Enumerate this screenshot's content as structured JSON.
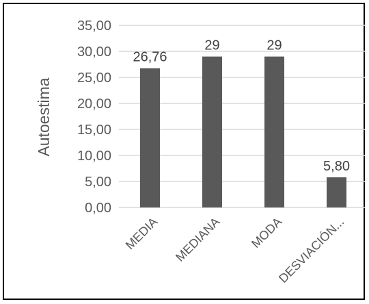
{
  "chart_data": {
    "type": "bar",
    "categories": [
      "MEDIA",
      "MEDIANA",
      "MODA",
      "DESVIACIÓN..."
    ],
    "values": [
      26.76,
      29,
      29,
      5.8
    ],
    "data_labels": [
      "26,76",
      "29",
      "29",
      "5,80"
    ],
    "title": "",
    "xlabel": "",
    "ylabel": "Autoestima",
    "ylim": [
      0,
      35
    ],
    "yticks": [
      0,
      5,
      10,
      15,
      20,
      25,
      30,
      35
    ],
    "ytick_labels": [
      "0,00",
      "5,00",
      "10,00",
      "15,00",
      "20,00",
      "25,00",
      "30,00",
      "35,00"
    ],
    "grid": true,
    "legend": "none",
    "bar_color": "#595959",
    "grid_color": "#d9d9d9"
  }
}
